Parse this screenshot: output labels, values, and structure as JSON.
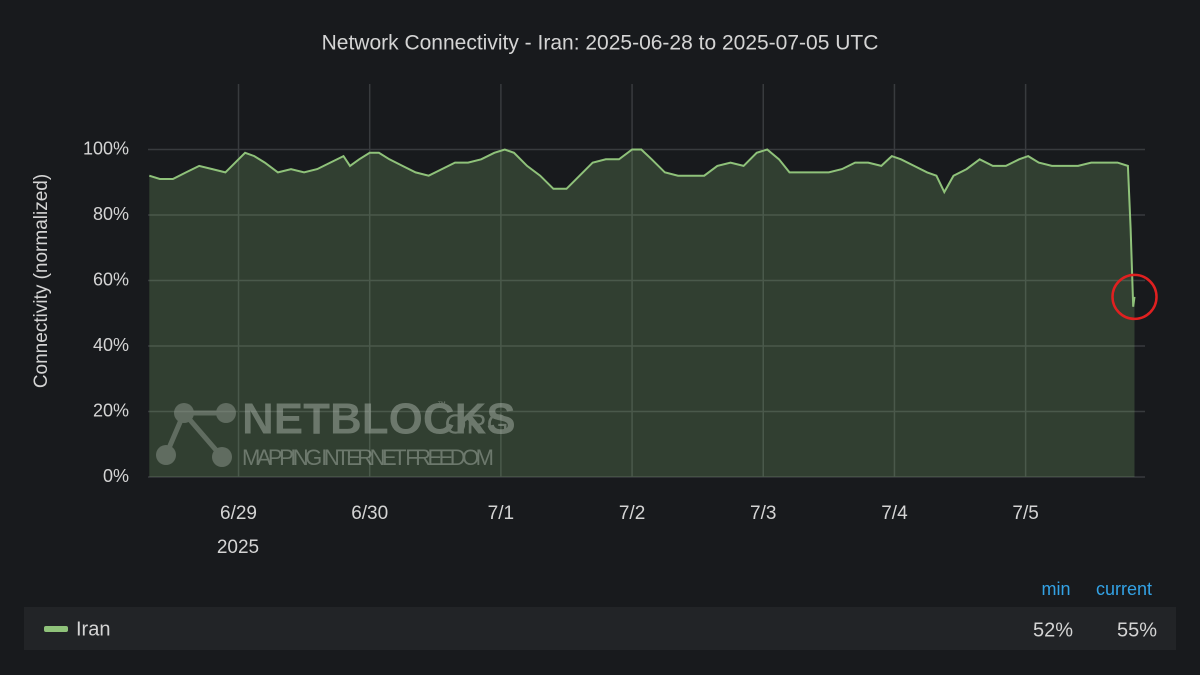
{
  "chart_data": {
    "type": "area",
    "title": "Network Connectivity - Iran: 2025-06-28 to 2025-07-05 UTC",
    "y_label": "Connectivity (normalized)",
    "x_year_label": "2025",
    "xlim": [
      0.31,
      7.91
    ],
    "xticks": [
      {
        "value": 1,
        "label": "6/29"
      },
      {
        "value": 2,
        "label": "6/30"
      },
      {
        "value": 3,
        "label": "7/1"
      },
      {
        "value": 4,
        "label": "7/2"
      },
      {
        "value": 5,
        "label": "7/3"
      },
      {
        "value": 6,
        "label": "7/4"
      },
      {
        "value": 7,
        "label": "7/5"
      }
    ],
    "ylim": [
      0,
      120
    ],
    "yticks": [
      {
        "value": 0,
        "label": "0%"
      },
      {
        "value": 20,
        "label": "20%"
      },
      {
        "value": 40,
        "label": "40%"
      },
      {
        "value": 60,
        "label": "60%"
      },
      {
        "value": 80,
        "label": "80%"
      },
      {
        "value": 100,
        "label": "100%"
      }
    ],
    "grid": true,
    "series": [
      {
        "name": "Iran",
        "color": "#8fc27a",
        "x": [
          0.32,
          0.4,
          0.5,
          0.6,
          0.7,
          0.8,
          0.9,
          1.0,
          1.05,
          1.12,
          1.2,
          1.3,
          1.4,
          1.5,
          1.6,
          1.7,
          1.8,
          1.85,
          1.92,
          2.0,
          2.07,
          2.15,
          2.25,
          2.35,
          2.45,
          2.55,
          2.65,
          2.75,
          2.85,
          2.95,
          3.03,
          3.1,
          3.2,
          3.3,
          3.4,
          3.5,
          3.6,
          3.7,
          3.8,
          3.9,
          4.0,
          4.07,
          4.15,
          4.25,
          4.35,
          4.45,
          4.55,
          4.65,
          4.75,
          4.85,
          4.95,
          5.03,
          5.12,
          5.2,
          5.3,
          5.4,
          5.5,
          5.6,
          5.7,
          5.8,
          5.9,
          5.98,
          6.05,
          6.15,
          6.25,
          6.32,
          6.38,
          6.45,
          6.55,
          6.65,
          6.75,
          6.85,
          6.95,
          7.02,
          7.1,
          7.2,
          7.3,
          7.4,
          7.5,
          7.6,
          7.7,
          7.78,
          7.8,
          7.82,
          7.83
        ],
        "values": [
          92,
          91,
          91,
          93,
          95,
          94,
          93,
          97,
          99,
          98,
          96,
          93,
          94,
          93,
          94,
          96,
          98,
          95,
          97,
          99,
          99,
          97,
          95,
          93,
          92,
          94,
          96,
          96,
          97,
          99,
          100,
          99,
          95,
          92,
          88,
          88,
          92,
          96,
          97,
          97,
          100,
          100,
          97,
          93,
          92,
          92,
          92,
          95,
          96,
          95,
          99,
          100,
          97,
          93,
          93,
          93,
          93,
          94,
          96,
          96,
          95,
          98,
          97,
          95,
          93,
          92,
          87,
          92,
          94,
          97,
          95,
          95,
          97,
          98,
          96,
          95,
          95,
          95,
          96,
          96,
          96,
          95,
          76,
          52,
          55
        ]
      }
    ],
    "legend": {
      "columns": [
        "min",
        "current"
      ],
      "values": [
        "52%",
        "55%"
      ]
    },
    "watermark": {
      "name": "NETBLOCKS",
      "tm": "™",
      "suffix": ".ORG",
      "tagline": "MAPPING INTERNET FREEDOM"
    }
  }
}
